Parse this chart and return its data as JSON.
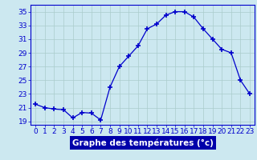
{
  "hours": [
    0,
    1,
    2,
    3,
    4,
    5,
    6,
    7,
    8,
    9,
    10,
    11,
    12,
    13,
    14,
    15,
    16,
    17,
    18,
    19,
    20,
    21,
    22,
    23
  ],
  "temps": [
    21.5,
    21.0,
    20.8,
    20.7,
    19.5,
    20.3,
    20.2,
    19.2,
    24.0,
    27.0,
    28.5,
    30.0,
    32.5,
    33.2,
    34.5,
    35.0,
    35.0,
    34.2,
    32.5,
    31.0,
    29.5,
    29.0,
    25.0,
    23.0
  ],
  "xlabel": "Graphe des températures (°c)",
  "ylim": [
    18.5,
    36
  ],
  "xlim": [
    -0.5,
    23.5
  ],
  "yticks": [
    19,
    21,
    23,
    25,
    27,
    29,
    31,
    33,
    35
  ],
  "xtick_labels": [
    "0",
    "1",
    "2",
    "3",
    "4",
    "5",
    "6",
    "7",
    "8",
    "9",
    "10",
    "11",
    "12",
    "13",
    "14",
    "15",
    "16",
    "17",
    "18",
    "19",
    "20",
    "21",
    "22",
    "23"
  ],
  "line_color": "#0000cc",
  "marker": "+",
  "marker_size": 4,
  "bg_color": "#cce8f0",
  "grid_color": "#aacccc",
  "label_bg": "#0000aa",
  "label_fg": "#ffffff",
  "tick_fontsize": 6.5,
  "xlabel_fontsize": 7.5
}
